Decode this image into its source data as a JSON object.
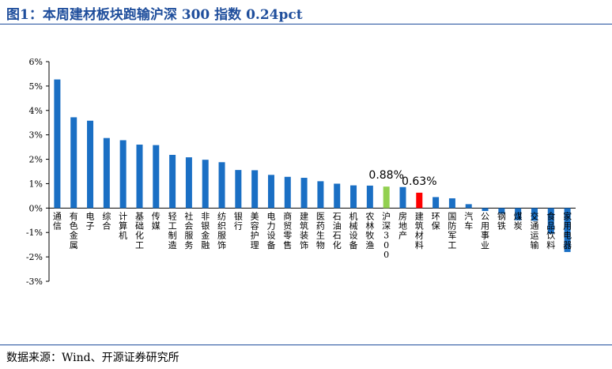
{
  "figure": {
    "title": "图1：本周建材板块跑输沪深 300 指数 0.24pct",
    "source": "数据来源：Wind、开源证券研究所"
  },
  "chart_data": {
    "type": "bar",
    "ylim": [
      -3,
      6
    ],
    "yticks": [
      -3,
      -2,
      -1,
      0,
      1,
      2,
      3,
      4,
      5,
      6
    ],
    "ytick_labels": [
      "-3%",
      "-2%",
      "-1%",
      "0%",
      "1%",
      "2%",
      "3%",
      "4%",
      "5%",
      "6%"
    ],
    "grid": false,
    "categories": [
      "通信",
      "有色金属",
      "电子",
      "综合",
      "计算机",
      "基础化工",
      "传媒",
      "轻工制造",
      "社会服务",
      "非银金融",
      "纺织服饰",
      "银行",
      "美容护理",
      "电力设备",
      "商贸零售",
      "建筑装饰",
      "医药生物",
      "石油石化",
      "机械设备",
      "农林牧渔",
      "沪深300",
      "房地产",
      "建筑材料",
      "环保",
      "国防军工",
      "汽车",
      "公用事业",
      "钢铁",
      "煤炭",
      "交通运输",
      "食品饮料",
      "家用电器"
    ],
    "values": [
      5.27,
      3.72,
      3.58,
      2.87,
      2.78,
      2.6,
      2.58,
      2.18,
      2.08,
      1.98,
      1.88,
      1.56,
      1.55,
      1.36,
      1.28,
      1.24,
      1.1,
      1.0,
      0.93,
      0.92,
      0.88,
      0.86,
      0.63,
      0.45,
      0.4,
      0.16,
      -0.12,
      -0.23,
      -0.5,
      -0.52,
      -1.05,
      -1.8
    ],
    "colors": {
      "default": "#1a6fc4",
      "沪深300": "#92d050",
      "建筑材料": "#ff0000"
    },
    "annotations": [
      {
        "category": "沪深300",
        "text": "0.88%"
      },
      {
        "category": "建筑材料",
        "text": "0.63%"
      }
    ]
  }
}
